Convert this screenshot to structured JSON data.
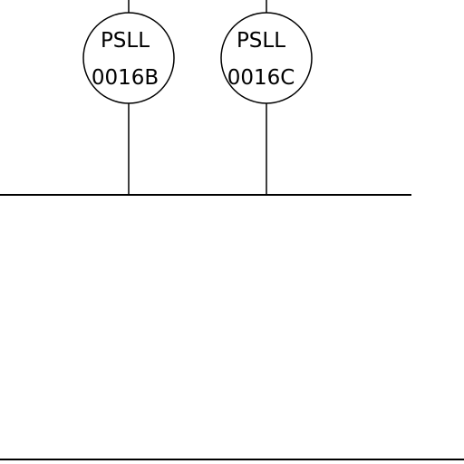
{
  "instruments": [
    {
      "tag": "PSLL",
      "number": "0016B"
    },
    {
      "tag": "PSLL",
      "number": "0016C"
    }
  ],
  "colors": {
    "line": "#000000",
    "background": "#ffffff"
  }
}
